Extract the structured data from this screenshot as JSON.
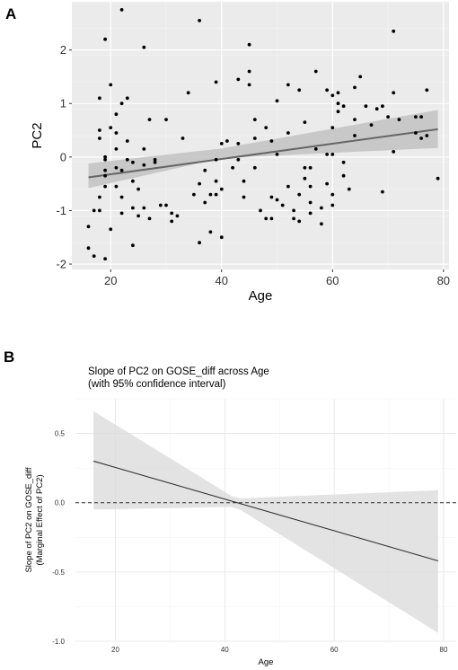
{
  "chart_data": [
    {
      "panel": "A",
      "type": "scatter",
      "title": "",
      "xlabel": "Age",
      "ylabel": "PC2",
      "xlim": [
        13,
        81
      ],
      "ylim": [
        -2.1,
        2.9
      ],
      "x_ticks": [
        20,
        40,
        60,
        80
      ],
      "y_ticks": [
        -2,
        -1,
        0,
        1,
        2
      ],
      "grid": true,
      "points": [
        [
          16,
          -1.3
        ],
        [
          16,
          -1.7
        ],
        [
          17,
          -1.85
        ],
        [
          17,
          -1.0
        ],
        [
          18,
          1.1
        ],
        [
          18,
          0.5
        ],
        [
          18,
          0.35
        ],
        [
          18,
          -0.75
        ],
        [
          18,
          -1.0
        ],
        [
          19,
          -1.9
        ],
        [
          19,
          0.0
        ],
        [
          19,
          -0.05
        ],
        [
          19,
          -0.35
        ],
        [
          19,
          -0.55
        ],
        [
          19,
          2.2
        ],
        [
          19,
          -0.25
        ],
        [
          20,
          -1.35
        ],
        [
          20,
          1.35
        ],
        [
          20,
          0.55
        ],
        [
          21,
          0.8
        ],
        [
          21,
          0.45
        ],
        [
          21,
          0.15
        ],
        [
          21,
          -0.2
        ],
        [
          21,
          -0.55
        ],
        [
          22,
          2.75
        ],
        [
          22,
          1.0
        ],
        [
          22,
          -0.25
        ],
        [
          22,
          -0.75
        ],
        [
          22,
          -1.05
        ],
        [
          23,
          1.1
        ],
        [
          23,
          0.3
        ],
        [
          23,
          -0.05
        ],
        [
          24,
          -0.1
        ],
        [
          24,
          -0.45
        ],
        [
          24,
          -0.95
        ],
        [
          24,
          -1.65
        ],
        [
          25,
          -0.6
        ],
        [
          25,
          -1.1
        ],
        [
          26,
          2.05
        ],
        [
          26,
          0.15
        ],
        [
          26,
          -0.15
        ],
        [
          26,
          -0.95
        ],
        [
          27,
          0.7
        ],
        [
          27,
          -1.15
        ],
        [
          28,
          -0.05
        ],
        [
          28,
          -0.1
        ],
        [
          29,
          -0.9
        ],
        [
          30,
          0.7
        ],
        [
          30,
          -0.9
        ],
        [
          31,
          -1.2
        ],
        [
          31,
          -1.05
        ],
        [
          32,
          -1.1
        ],
        [
          33,
          0.35
        ],
        [
          34,
          1.2
        ],
        [
          35,
          -0.7
        ],
        [
          36,
          2.55
        ],
        [
          36,
          -0.5
        ],
        [
          36,
          -1.6
        ],
        [
          37,
          -0.85
        ],
        [
          37,
          -0.25
        ],
        [
          38,
          -0.7
        ],
        [
          38,
          -1.4
        ],
        [
          39,
          1.4
        ],
        [
          39,
          -0.05
        ],
        [
          39,
          -0.7
        ],
        [
          39,
          -0.45
        ],
        [
          40,
          0.25
        ],
        [
          40,
          -0.6
        ],
        [
          40,
          -1.5
        ],
        [
          41,
          0.3
        ],
        [
          42,
          -0.2
        ],
        [
          43,
          1.45
        ],
        [
          43,
          0.25
        ],
        [
          43,
          -0.05
        ],
        [
          44,
          -0.75
        ],
        [
          44,
          -0.45
        ],
        [
          45,
          2.1
        ],
        [
          45,
          1.6
        ],
        [
          45,
          1.35
        ],
        [
          46,
          0.7
        ],
        [
          46,
          0.35
        ],
        [
          46,
          -0.2
        ],
        [
          47,
          -1.0
        ],
        [
          48,
          0.55
        ],
        [
          48,
          -1.15
        ],
        [
          49,
          0.3
        ],
        [
          49,
          -0.75
        ],
        [
          49,
          -1.15
        ],
        [
          50,
          1.05
        ],
        [
          50,
          0.05
        ],
        [
          50,
          -0.8
        ],
        [
          51,
          -0.9
        ],
        [
          52,
          1.35
        ],
        [
          52,
          0.45
        ],
        [
          52,
          -0.55
        ],
        [
          53,
          -1.0
        ],
        [
          53,
          -1.15
        ],
        [
          54,
          1.25
        ],
        [
          54,
          -0.7
        ],
        [
          54,
          -1.2
        ],
        [
          55,
          0.65
        ],
        [
          55,
          -0.2
        ],
        [
          55,
          -0.4
        ],
        [
          56,
          -0.2
        ],
        [
          56,
          -0.55
        ],
        [
          56,
          -0.85
        ],
        [
          56,
          -1.05
        ],
        [
          57,
          1.6
        ],
        [
          57,
          0.15
        ],
        [
          58,
          -1.25
        ],
        [
          58,
          -0.95
        ],
        [
          59,
          1.25
        ],
        [
          59,
          0.05
        ],
        [
          59,
          -0.5
        ],
        [
          60,
          1.15
        ],
        [
          60,
          0.55
        ],
        [
          60,
          0.05
        ],
        [
          60,
          -0.7
        ],
        [
          60,
          -0.9
        ],
        [
          61,
          1.2
        ],
        [
          61,
          1.0
        ],
        [
          61,
          0.85
        ],
        [
          62,
          0.95
        ],
        [
          62,
          -0.1
        ],
        [
          62,
          -0.35
        ],
        [
          63,
          -0.6
        ],
        [
          64,
          1.3
        ],
        [
          64,
          0.7
        ],
        [
          64,
          0.4
        ],
        [
          65,
          1.5
        ],
        [
          66,
          0.95
        ],
        [
          67,
          0.6
        ],
        [
          68,
          0.9
        ],
        [
          69,
          0.95
        ],
        [
          69,
          -0.65
        ],
        [
          70,
          0.75
        ],
        [
          71,
          2.35
        ],
        [
          71,
          1.2
        ],
        [
          71,
          0.1
        ],
        [
          72,
          0.7
        ],
        [
          75,
          0.45
        ],
        [
          75,
          0.75
        ],
        [
          76,
          0.75
        ],
        [
          76,
          0.35
        ],
        [
          77,
          1.25
        ],
        [
          77,
          0.4
        ],
        [
          79,
          -0.4
        ]
      ],
      "fit_line": {
        "x": [
          16,
          79
        ],
        "y": [
          -0.38,
          0.52
        ]
      },
      "ci_band": {
        "x": [
          16,
          40,
          79
        ],
        "lower": [
          -0.58,
          -0.02,
          0.17
        ],
        "upper": [
          -0.12,
          0.16,
          0.88
        ]
      }
    },
    {
      "panel": "B",
      "type": "line",
      "title": "Slope of PC2 on GOSE_diff across Age",
      "subtitle": "(with 95% confidence interval)",
      "xlabel": "Age",
      "ylabel": "Slope of PC2 on GOSE_diff",
      "ylabel2": "(Marginal Effect of PC2)",
      "xlim": [
        12.7,
        82.3
      ],
      "ylim": [
        -1.0,
        0.75
      ],
      "x_ticks": [
        20,
        40,
        60,
        80
      ],
      "y_ticks": [
        -1.0,
        -0.5,
        0.0,
        0.5
      ],
      "y_tick_labels": [
        "-1.0",
        "-0.5",
        "0.0",
        "0.5"
      ],
      "grid": true,
      "line": {
        "x": [
          16,
          79
        ],
        "y": [
          0.3,
          -0.42
        ]
      },
      "ci_band": {
        "x": [
          16,
          42,
          79
        ],
        "lower": [
          -0.05,
          -0.03,
          -0.94
        ],
        "upper": [
          0.66,
          0.03,
          0.09
        ]
      },
      "reference_line": 0.0
    }
  ],
  "labels": {
    "panel_a": "A",
    "panel_b": "B"
  }
}
